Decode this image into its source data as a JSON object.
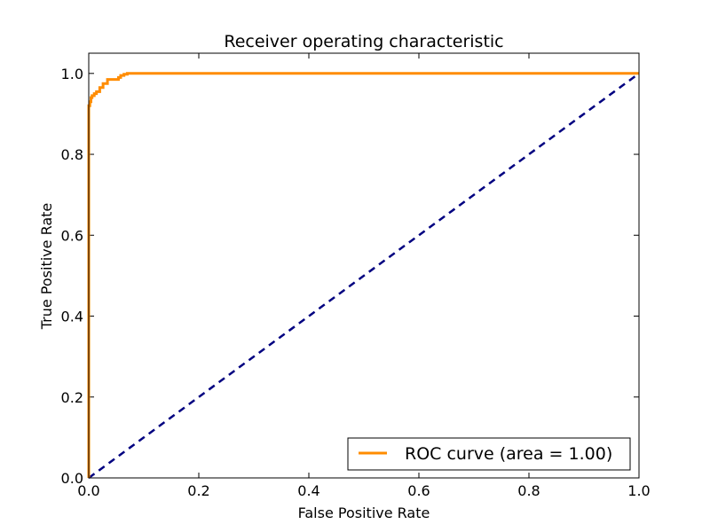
{
  "chart_data": {
    "type": "line",
    "title": "Receiver operating characteristic",
    "xlabel": "False Positive Rate",
    "ylabel": "True Positive Rate",
    "xlim": [
      0.0,
      1.0
    ],
    "ylim": [
      0.0,
      1.05
    ],
    "xticks": [
      0.0,
      0.2,
      0.4,
      0.6,
      0.8,
      1.0
    ],
    "xtick_labels": [
      "0.0",
      "0.2",
      "0.4",
      "0.6",
      "0.8",
      "1.0"
    ],
    "yticks": [
      0.0,
      0.2,
      0.4,
      0.6,
      0.8,
      1.0
    ],
    "ytick_labels": [
      "0.0",
      "0.2",
      "0.4",
      "0.6",
      "0.8",
      "1.0"
    ],
    "grid": false,
    "legend_position": "lower-right",
    "series": [
      {
        "name": "ROC curve (area = 1.00)",
        "color": "#ff8c00",
        "style": "solid",
        "x": [
          0.0,
          0.0,
          0.0,
          0.002,
          0.002,
          0.004,
          0.004,
          0.006,
          0.006,
          0.01,
          0.01,
          0.014,
          0.014,
          0.02,
          0.02,
          0.026,
          0.026,
          0.034,
          0.034,
          0.054,
          0.054,
          0.058,
          0.058,
          0.064,
          0.064,
          0.07,
          0.07,
          1.0
        ],
        "y": [
          0.0,
          0.48,
          0.92,
          0.92,
          0.93,
          0.93,
          0.94,
          0.94,
          0.945,
          0.945,
          0.95,
          0.95,
          0.955,
          0.955,
          0.965,
          0.965,
          0.975,
          0.975,
          0.985,
          0.985,
          0.99,
          0.99,
          0.995,
          0.995,
          0.998,
          0.998,
          1.0,
          1.0
        ]
      },
      {
        "name": "",
        "color": "#000080",
        "style": "dashed",
        "x": [
          0.0,
          1.0
        ],
        "y": [
          0.0,
          1.0
        ]
      }
    ]
  }
}
